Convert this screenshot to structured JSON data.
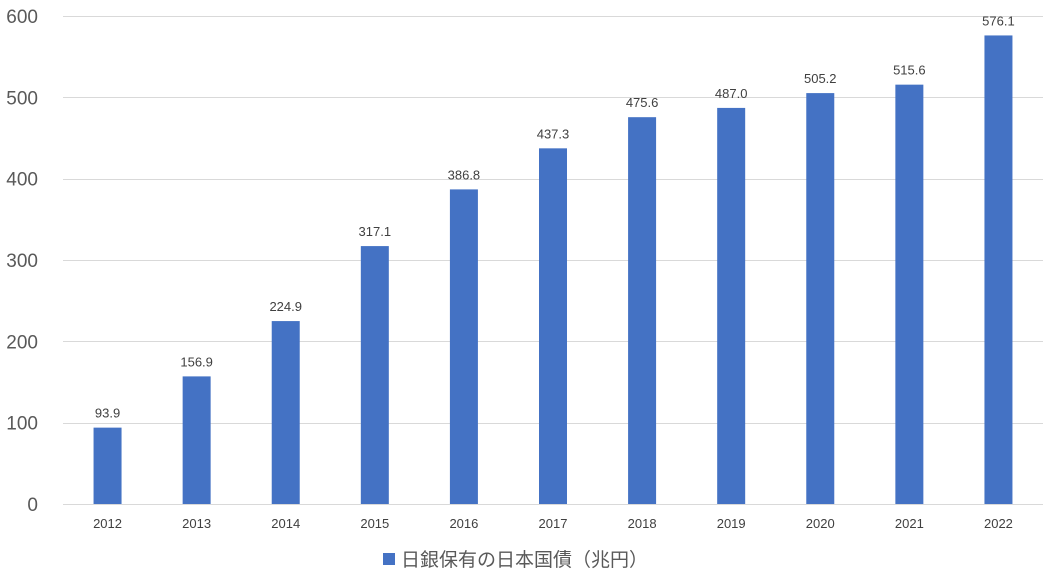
{
  "chart_data": {
    "type": "bar",
    "title": "",
    "xlabel": "",
    "ylabel": "",
    "categories": [
      "2012",
      "2013",
      "2014",
      "2015",
      "2016",
      "2017",
      "2018",
      "2019",
      "2020",
      "2021",
      "2022"
    ],
    "series": [
      {
        "name": "日銀保有の日本国債（兆円）",
        "color": "#4472C4",
        "values": [
          93.9,
          156.9,
          224.9,
          317.1,
          386.8,
          437.3,
          475.6,
          487.0,
          505.2,
          515.6,
          576.1
        ],
        "value_labels": [
          "93.9",
          "156.9",
          "224.9",
          "317.1",
          "386.8",
          "437.3",
          "475.6",
          "487.0",
          "505.2",
          "515.6",
          "576.1"
        ]
      }
    ],
    "ylim": [
      0,
      600
    ],
    "yticks": [
      0,
      100,
      200,
      300,
      400,
      500,
      600
    ],
    "grid": true,
    "legend_position": "bottom"
  }
}
